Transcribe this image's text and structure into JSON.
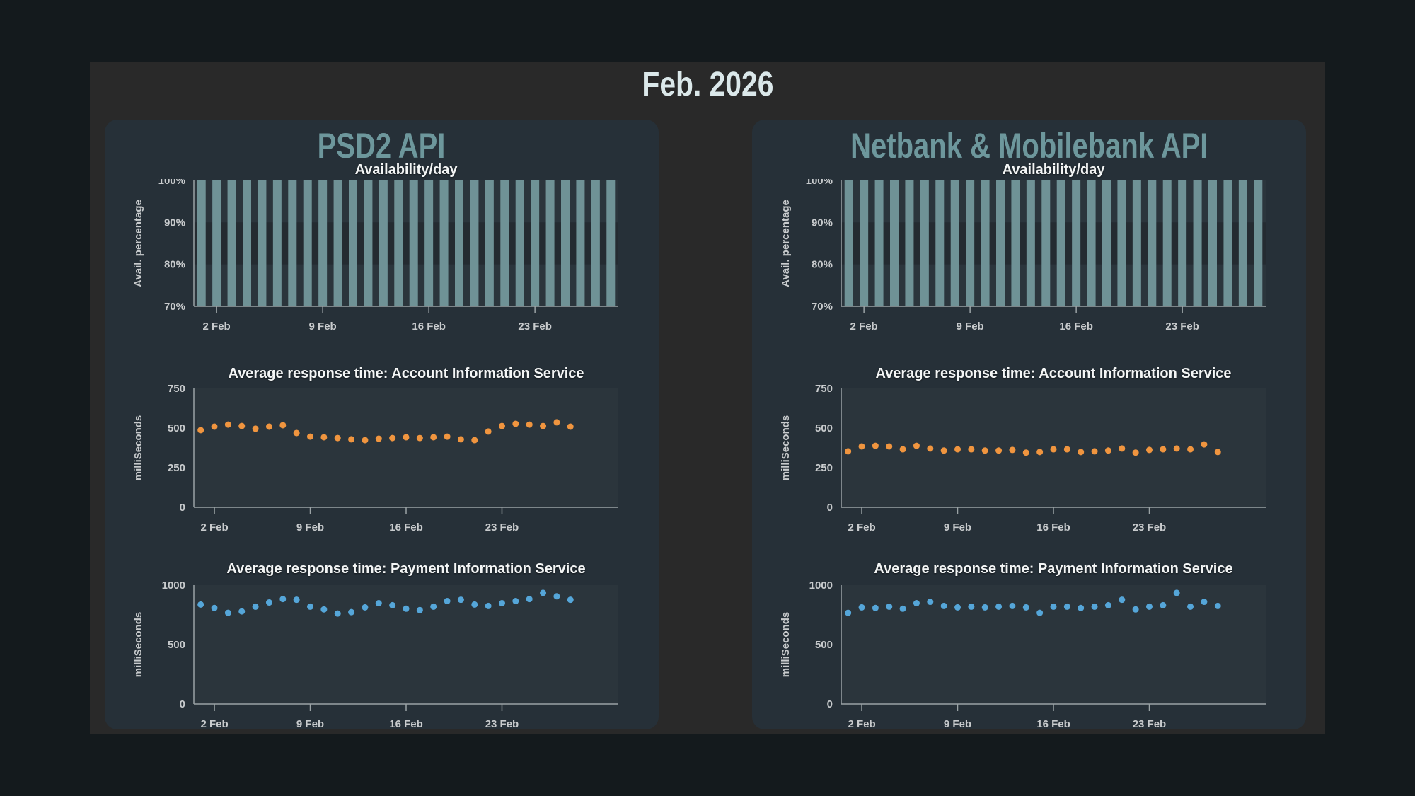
{
  "page": {
    "title": "Feb. 2026"
  },
  "colors": {
    "page_bg": "#141a1d",
    "container_bg": "#292929",
    "panel_bg": "#263038",
    "plot_bg": "#2b353c",
    "band_light": "#2b353c",
    "band_dark": "#242b31",
    "bar": "#6f9296",
    "orange": "#f0953f",
    "blue": "#55a6d9",
    "axis": "#9aa2a5",
    "tick_label": "#c8cbcd",
    "chart_title": "#f3f5f5",
    "panel_title": "#6d979c",
    "main_title": "#dbe8ea"
  },
  "panels": [
    {
      "title": "PSD2 API"
    },
    {
      "title": "Netbank & Mobilebank API"
    }
  ],
  "chart_data": [
    {
      "id": "psd2-availability",
      "panel": "PSD2 API",
      "type": "bar",
      "title": "Availability/day",
      "xlabel": "",
      "ylabel": "Avail. percentage",
      "ymin": 70,
      "ymax": 100,
      "grid": false,
      "legend": "none",
      "yticks": [
        {
          "v": 100,
          "label": "100%"
        },
        {
          "v": 90,
          "label": "90%"
        },
        {
          "v": 80,
          "label": "80%"
        },
        {
          "v": 70,
          "label": "70%"
        }
      ],
      "xticks": [
        {
          "day": 2,
          "label": "2 Feb"
        },
        {
          "day": 9,
          "label": "9 Feb"
        },
        {
          "day": 16,
          "label": "16 Feb"
        },
        {
          "day": 23,
          "label": "23 Feb"
        }
      ],
      "x_slots": 28,
      "color_key": "bar",
      "band_keys": [
        "band_light",
        "band_dark",
        "band_light"
      ],
      "values": [
        100,
        100,
        100,
        100,
        100,
        100,
        100,
        100,
        100,
        100,
        100,
        100,
        100,
        100,
        100,
        100,
        100,
        100,
        100,
        100,
        100,
        100,
        100,
        100,
        100,
        100,
        100,
        100
      ]
    },
    {
      "id": "psd2-ais",
      "panel": "PSD2 API",
      "type": "scatter",
      "title": "Average response time: Account Information Service",
      "xlabel": "",
      "ylabel": "milliSeconds",
      "ymin": 0,
      "ymax": 750,
      "grid": false,
      "legend": "none",
      "yticks": [
        {
          "v": 750,
          "label": "750"
        },
        {
          "v": 500,
          "label": "500"
        },
        {
          "v": 250,
          "label": "250"
        },
        {
          "v": 0,
          "label": "0"
        }
      ],
      "xticks": [
        {
          "day": 2,
          "label": "2 Feb"
        },
        {
          "day": 9,
          "label": "9 Feb"
        },
        {
          "day": 16,
          "label": "16 Feb"
        },
        {
          "day": 23,
          "label": "23 Feb"
        }
      ],
      "x_slots": 31,
      "color_key": "orange",
      "values": [
        487,
        509,
        522,
        513,
        496,
        509,
        518,
        469,
        446,
        442,
        437,
        429,
        424,
        433,
        437,
        442,
        437,
        442,
        446,
        429,
        424,
        478,
        513,
        527,
        522,
        513,
        536,
        509
      ]
    },
    {
      "id": "psd2-pis",
      "panel": "PSD2 API",
      "type": "scatter",
      "title": "Average response time: Payment Information Service",
      "xlabel": "",
      "ylabel": "milliSeconds",
      "ymin": 0,
      "ymax": 1000,
      "grid": false,
      "legend": "none",
      "yticks": [
        {
          "v": 1000,
          "label": "1000"
        },
        {
          "v": 500,
          "label": "500"
        },
        {
          "v": 0,
          "label": "0"
        }
      ],
      "xticks": [
        {
          "day": 2,
          "label": "2 Feb"
        },
        {
          "day": 9,
          "label": "9 Feb"
        },
        {
          "day": 16,
          "label": "16 Feb"
        },
        {
          "day": 23,
          "label": "23 Feb"
        }
      ],
      "x_slots": 31,
      "color_key": "blue",
      "values": [
        837,
        808,
        767,
        779,
        819,
        854,
        883,
        877,
        819,
        796,
        761,
        773,
        813,
        848,
        831,
        802,
        790,
        819,
        866,
        877,
        837,
        825,
        848,
        866,
        883,
        935,
        906,
        877
      ]
    },
    {
      "id": "netbank-availability",
      "panel": "Netbank & Mobilebank API",
      "type": "bar",
      "title": "Availability/day",
      "xlabel": "",
      "ylabel": "Avail. percentage",
      "ymin": 70,
      "ymax": 100,
      "grid": false,
      "legend": "none",
      "yticks": [
        {
          "v": 100,
          "label": "100%"
        },
        {
          "v": 90,
          "label": "90%"
        },
        {
          "v": 80,
          "label": "80%"
        },
        {
          "v": 70,
          "label": "70%"
        }
      ],
      "xticks": [
        {
          "day": 2,
          "label": "2 Feb"
        },
        {
          "day": 9,
          "label": "9 Feb"
        },
        {
          "day": 16,
          "label": "16 Feb"
        },
        {
          "day": 23,
          "label": "23 Feb"
        }
      ],
      "x_slots": 28,
      "color_key": "bar",
      "band_keys": [
        "band_light",
        "band_dark",
        "band_light"
      ],
      "values": [
        100,
        100,
        100,
        100,
        100,
        100,
        100,
        100,
        100,
        100,
        100,
        100,
        100,
        100,
        100,
        100,
        100,
        100,
        100,
        100,
        100,
        100,
        100,
        100,
        100,
        100,
        100,
        100
      ]
    },
    {
      "id": "netbank-ais",
      "panel": "Netbank & Mobilebank API",
      "type": "scatter",
      "title": "Average response time: Account Information Service",
      "xlabel": "",
      "ylabel": "milliSeconds",
      "ymin": 0,
      "ymax": 750,
      "grid": false,
      "legend": "none",
      "yticks": [
        {
          "v": 750,
          "label": "750"
        },
        {
          "v": 500,
          "label": "500"
        },
        {
          "v": 250,
          "label": "250"
        },
        {
          "v": 0,
          "label": "0"
        }
      ],
      "xticks": [
        {
          "day": 2,
          "label": "2 Feb"
        },
        {
          "day": 9,
          "label": "9 Feb"
        },
        {
          "day": 16,
          "label": "16 Feb"
        },
        {
          "day": 23,
          "label": "23 Feb"
        }
      ],
      "x_slots": 31,
      "color_key": "orange",
      "values": [
        353,
        384,
        388,
        384,
        366,
        388,
        371,
        358,
        366,
        366,
        358,
        358,
        362,
        345,
        349,
        366,
        366,
        349,
        353,
        358,
        371,
        345,
        362,
        366,
        371,
        366,
        397,
        349
      ]
    },
    {
      "id": "netbank-pis",
      "panel": "Netbank & Mobilebank API",
      "type": "scatter",
      "title": "Average response time: Payment Information Service",
      "xlabel": "",
      "ylabel": "milliSeconds",
      "ymin": 0,
      "ymax": 1000,
      "grid": false,
      "legend": "none",
      "yticks": [
        {
          "v": 1000,
          "label": "1000"
        },
        {
          "v": 500,
          "label": "500"
        },
        {
          "v": 0,
          "label": "0"
        }
      ],
      "xticks": [
        {
          "day": 2,
          "label": "2 Feb"
        },
        {
          "day": 9,
          "label": "9 Feb"
        },
        {
          "day": 16,
          "label": "16 Feb"
        },
        {
          "day": 23,
          "label": "23 Feb"
        }
      ],
      "x_slots": 31,
      "color_key": "blue",
      "values": [
        767,
        813,
        808,
        819,
        802,
        848,
        860,
        825,
        813,
        819,
        813,
        819,
        825,
        813,
        767,
        819,
        819,
        808,
        819,
        831,
        877,
        796,
        819,
        831,
        935,
        819,
        860,
        825
      ]
    }
  ]
}
